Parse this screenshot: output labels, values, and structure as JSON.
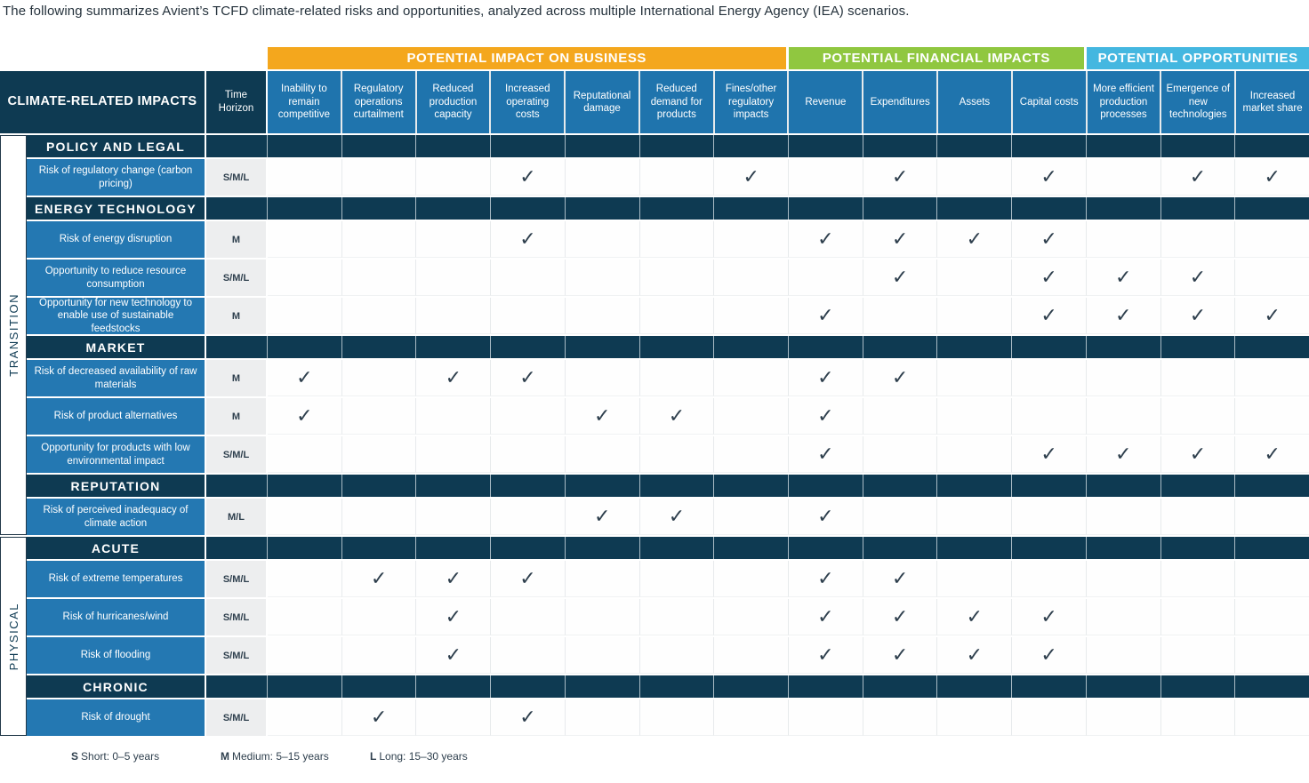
{
  "title": "The following summarizes Avient’s TCFD climate-related risks and opportunities, analyzed across multiple International Energy Agency (IEA) scenarios.",
  "check_glyph": "✓",
  "colors": {
    "navy": "#0E3A52",
    "header_blue": "#1F74AD",
    "row_label_blue": "#2478B2",
    "business_orange": "#F4A71D",
    "financial_green": "#90C740",
    "opportunities_cyan": "#44B7E0",
    "time_cell_gray": "#EDEEEF",
    "check_dark": "#2E3F4D"
  },
  "table": {
    "corner_header": "CLIMATE-RELATED IMPACTS",
    "time_horizon_header": "Time Horizon",
    "groups": [
      {
        "label": "POTENTIAL IMPACT ON BUSINESS",
        "color": "#F4A71D",
        "span": 7
      },
      {
        "label": "POTENTIAL FINANCIAL IMPACTS",
        "color": "#90C740",
        "span": 4
      },
      {
        "label": "POTENTIAL OPPORTUNITIES",
        "color": "#44B7E0",
        "span": 3
      }
    ],
    "columns": [
      "Inability to remain competitive",
      "Regulatory operations curtailment",
      "Reduced production capacity",
      "Increased operating costs",
      "Reputational damage",
      "Reduced demand for products",
      "Fines/other regulatory impacts",
      "Revenue",
      "Expenditures",
      "Assets",
      "Capital costs",
      "More efficient production processes",
      "Emergence of new technologies",
      "Increased market share"
    ],
    "phases": [
      {
        "label": "TRANSITION",
        "sections": [
          {
            "label": "POLICY AND LEGAL",
            "rows": [
              {
                "label": "Risk of regulatory change (carbon pricing)",
                "time_horizon": "S/M/L",
                "checks": [
                  4,
                  7,
                  9,
                  11,
                  13,
                  14
                ]
              }
            ]
          },
          {
            "label": "ENERGY TECHNOLOGY",
            "rows": [
              {
                "label": "Risk of energy disruption",
                "time_horizon": "M",
                "checks": [
                  4,
                  8,
                  9,
                  10,
                  11
                ]
              },
              {
                "label": "Opportunity to reduce resource consumption",
                "time_horizon": "S/M/L",
                "checks": [
                  9,
                  11,
                  12,
                  13
                ]
              },
              {
                "label": "Opportunity for new technology to enable use of sustainable feedstocks",
                "time_horizon": "M",
                "checks": [
                  8,
                  11,
                  12,
                  13,
                  14
                ]
              }
            ]
          },
          {
            "label": "MARKET",
            "rows": [
              {
                "label": "Risk of decreased availability of raw materials",
                "time_horizon": "M",
                "checks": [
                  1,
                  3,
                  4,
                  8,
                  9
                ]
              },
              {
                "label": "Risk of product alternatives",
                "time_horizon": "M",
                "checks": [
                  1,
                  5,
                  6,
                  8
                ]
              },
              {
                "label": "Opportunity for products with low environmental impact",
                "time_horizon": "S/M/L",
                "checks": [
                  8,
                  11,
                  12,
                  13,
                  14
                ]
              }
            ]
          },
          {
            "label": "REPUTATION",
            "rows": [
              {
                "label": "Risk of perceived inadequacy of climate action",
                "time_horizon": "M/L",
                "checks": [
                  5,
                  6,
                  8
                ]
              }
            ]
          }
        ]
      },
      {
        "label": "PHYSICAL",
        "sections": [
          {
            "label": "ACUTE",
            "rows": [
              {
                "label": "Risk of extreme temperatures",
                "time_horizon": "S/M/L",
                "checks": [
                  2,
                  3,
                  4,
                  8,
                  9
                ]
              },
              {
                "label": "Risk of hurricanes/wind",
                "time_horizon": "S/M/L",
                "checks": [
                  3,
                  8,
                  9,
                  10,
                  11
                ]
              },
              {
                "label": "Risk of flooding",
                "time_horizon": "S/M/L",
                "checks": [
                  3,
                  8,
                  9,
                  10,
                  11
                ]
              }
            ]
          },
          {
            "label": "CHRONIC",
            "rows": [
              {
                "label": "Risk of drought",
                "time_horizon": "S/M/L",
                "checks": [
                  2,
                  4
                ]
              }
            ]
          }
        ]
      }
    ]
  },
  "legend": [
    {
      "key": "S",
      "text": "Short: 0–5 years"
    },
    {
      "key": "M",
      "text": "Medium: 5–15 years"
    },
    {
      "key": "L",
      "text": "Long: 15–30 years"
    }
  ]
}
